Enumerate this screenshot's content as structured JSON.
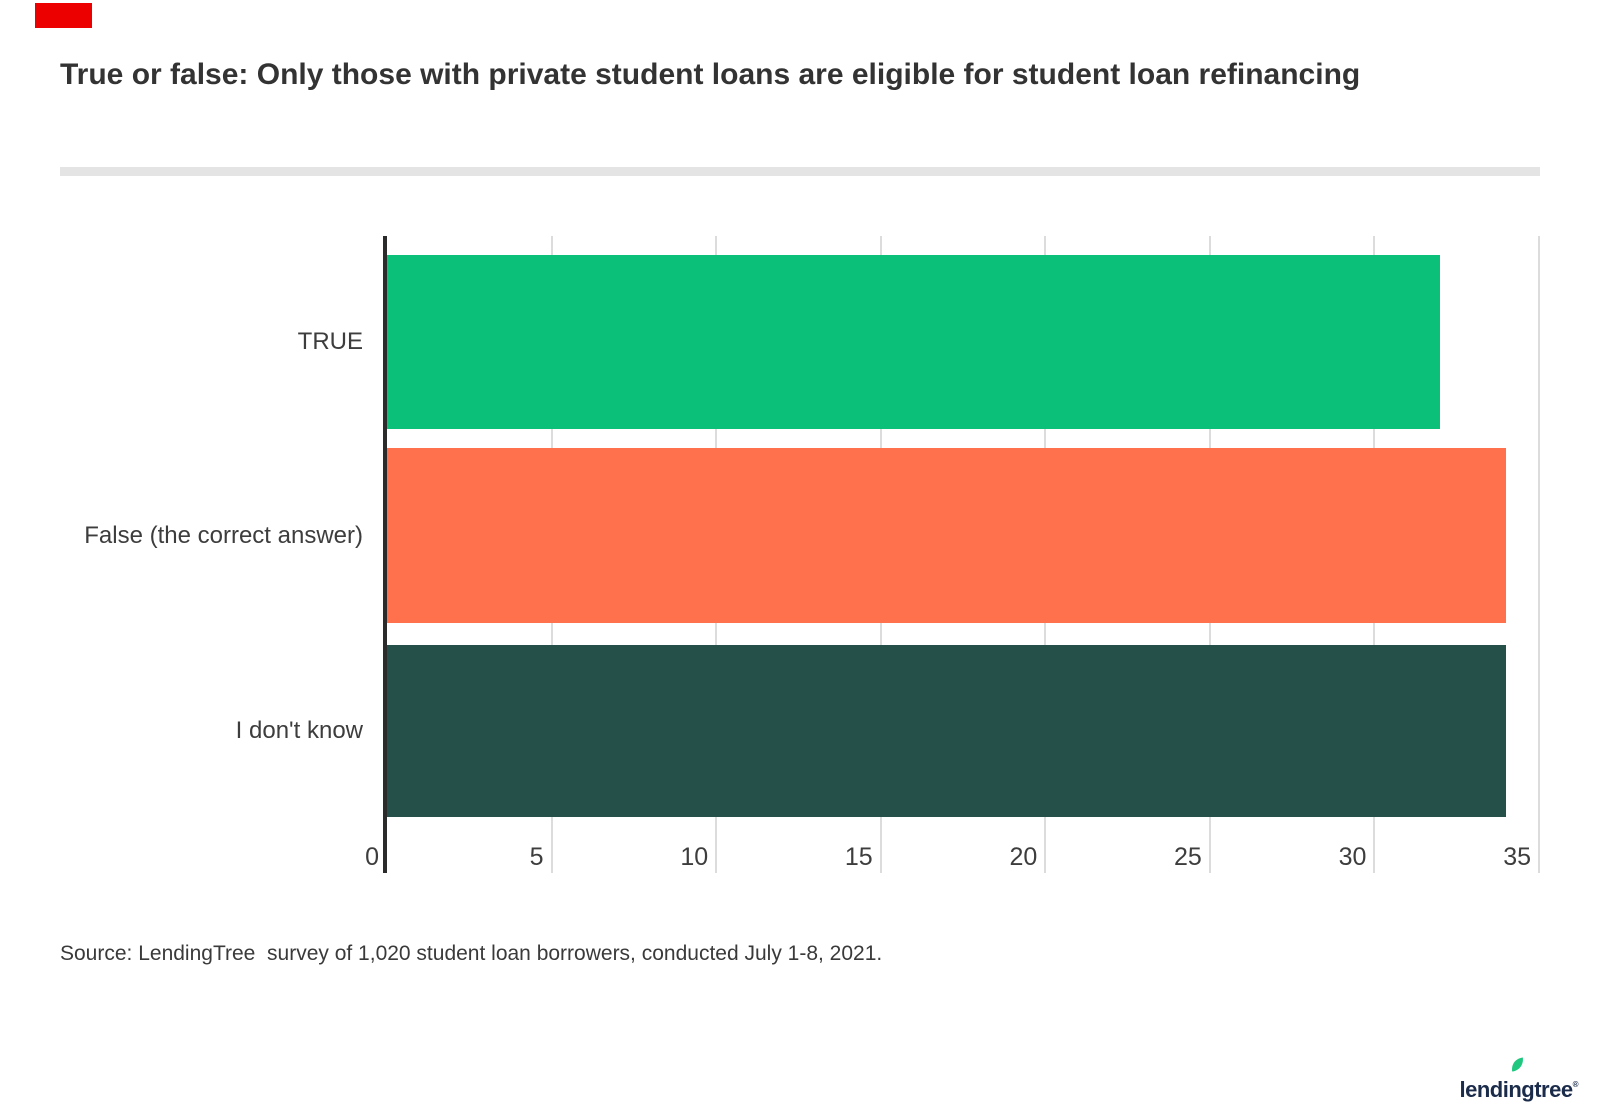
{
  "page": {
    "background": "#ffffff"
  },
  "marker": {
    "color": "#ec0000"
  },
  "title": "True or false: Only those with private student loans are eligible for student loan refinancing",
  "chart_data": {
    "type": "bar",
    "orientation": "horizontal",
    "title": "True or false: Only those with private student loans are eligible for student loan refinancing",
    "categories": [
      "TRUE",
      "False (the correct answer)",
      "I don't know"
    ],
    "values": [
      32,
      34,
      34
    ],
    "bar_colors": [
      "#0bc17a",
      "#ff704d",
      "#255049"
    ],
    "xticks": [
      0,
      5,
      10,
      15,
      20,
      25,
      30,
      35
    ],
    "xlim": [
      0,
      35
    ],
    "xlabel": "",
    "ylabel": "",
    "grid": true,
    "grid_color": "#dcdcdc",
    "axis_color": "#2b2b2b",
    "legend": false
  },
  "source": {
    "text": "Source: LendingTree  survey of 1,020 student loan borrowers, conducted July 1-8, 2021."
  },
  "footer": {
    "logo_text": "lendingtree",
    "registered_mark": "®",
    "leaf_color": "#1fc77f"
  }
}
